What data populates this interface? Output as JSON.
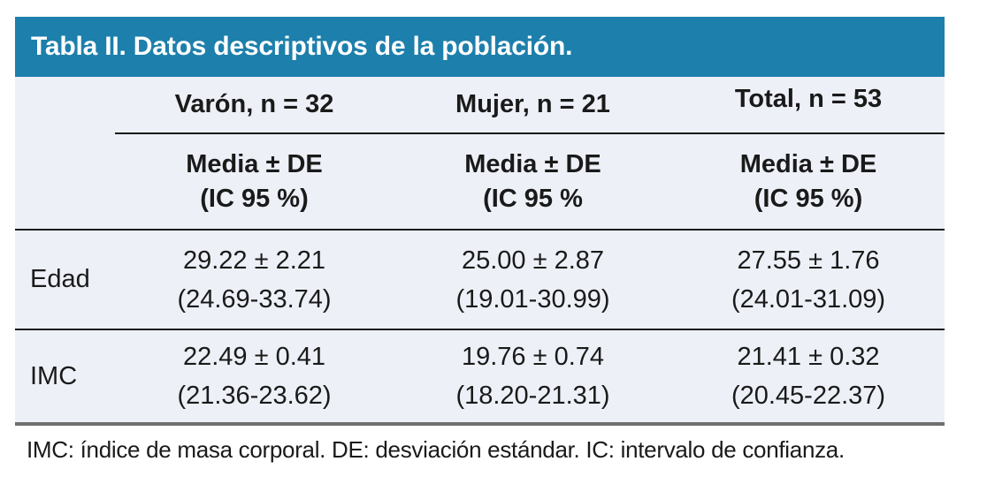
{
  "title": "Tabla II. Datos descriptivos de la población.",
  "columns": {
    "groups": [
      {
        "label": "Varón, n = 32"
      },
      {
        "label": "Mujer, n = 21"
      },
      {
        "label": "Total, n = 53"
      }
    ],
    "subheaders": [
      {
        "line1": "Media ± DE",
        "line2": "(IC 95 %)"
      },
      {
        "line1": "Media ± DE",
        "line2": "(IC 95 %"
      },
      {
        "line1": "Media ± DE",
        "line2": "(IC 95 %)"
      }
    ]
  },
  "rows": [
    {
      "label": "Edad",
      "cells": [
        {
          "mean": "29.22 ± 2.21",
          "ci": "(24.69-33.74)"
        },
        {
          "mean": "25.00 ± 2.87",
          "ci": "(19.01-30.99)"
        },
        {
          "mean": "27.55 ± 1.76",
          "ci": "(24.01-31.09)"
        }
      ]
    },
    {
      "label": "IMC",
      "cells": [
        {
          "mean": "22.49 ± 0.41",
          "ci": "(21.36-23.62)"
        },
        {
          "mean": "19.76 ± 0.74",
          "ci": "(18.20-21.31)"
        },
        {
          "mean": "21.41 ± 0.32",
          "ci": "(20.45-22.37)"
        }
      ]
    }
  ],
  "footnote": "IMC: índice de masa corporal. DE: desviación estándar. IC: intervalo de confianza.",
  "colors": {
    "title_bar_bg": "#1d7fab",
    "title_text": "#ffffff",
    "body_bg": "#edf0f7",
    "text": "#1a1a1a",
    "thin_rule": "#1a1a1a",
    "bottom_rule": "#6f6f6f"
  },
  "chart_data": {
    "type": "table",
    "title": "Tabla II. Datos descriptivos de la población.",
    "columns": [
      "",
      "Varón, n = 32 · Media ± DE (IC 95 %)",
      "Mujer, n = 21 · Media ± DE (IC 95 %)",
      "Total, n = 53 · Media ± DE (IC 95 %)"
    ],
    "rows": [
      [
        "Edad",
        "29.22 ± 2.21 (24.69-33.74)",
        "25.00 ± 2.87 (19.01-30.99)",
        "27.55 ± 1.76 (24.01-31.09)"
      ],
      [
        "IMC",
        "22.49 ± 0.41 (21.36-23.62)",
        "19.76 ± 0.74 (18.20-21.31)",
        "21.41 ± 0.32 (20.45-22.37)"
      ]
    ],
    "values": {
      "Edad": {
        "varon": {
          "mean": 29.22,
          "de": 2.21,
          "ci": [
            24.69,
            33.74
          ]
        },
        "mujer": {
          "mean": 25.0,
          "de": 2.87,
          "ci": [
            19.01,
            30.99
          ]
        },
        "total": {
          "mean": 27.55,
          "de": 1.76,
          "ci": [
            24.01,
            31.09
          ]
        }
      },
      "IMC": {
        "varon": {
          "mean": 22.49,
          "de": 0.41,
          "ci": [
            21.36,
            23.62
          ]
        },
        "mujer": {
          "mean": 19.76,
          "de": 0.74,
          "ci": [
            18.2,
            21.31
          ]
        },
        "total": {
          "mean": 21.41,
          "de": 0.32,
          "ci": [
            20.45,
            22.37
          ]
        }
      },
      "n": {
        "varon": 32,
        "mujer": 21,
        "total": 53
      }
    }
  }
}
